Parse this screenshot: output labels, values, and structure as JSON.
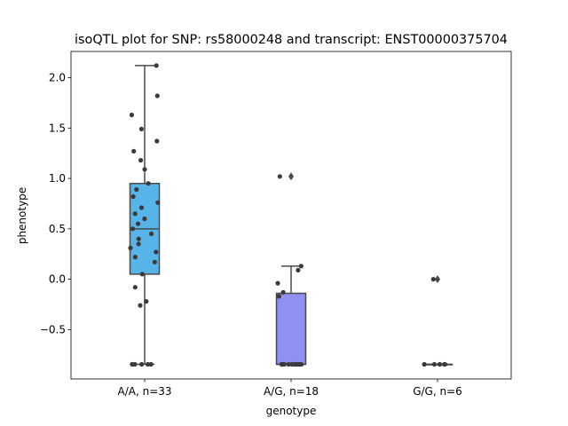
{
  "chart_data": {
    "type": "box",
    "title": "isoQTL plot for SNP: rs58000248 and transcript: ENST00000375704",
    "xlabel": "genotype",
    "ylabel": "phenotype",
    "categories": [
      "A/A, n=33",
      "A/G, n=18",
      "G/G, n=6"
    ],
    "ylim": [
      -0.99,
      2.26
    ],
    "yticks": [
      -0.5,
      0.0,
      0.5,
      1.0,
      1.5,
      2.0
    ],
    "ytick_labels": [
      "−0.5",
      "0.0",
      "0.5",
      "1.0",
      "1.5",
      "2.0"
    ],
    "grid": false,
    "colors": [
      "#56b4e9",
      "#9090f2",
      "#c8a8f0"
    ],
    "boxes": [
      {
        "category": "A/A, n=33",
        "whislo": -0.845,
        "q1": 0.05,
        "med": 0.5,
        "q3": 0.95,
        "whishi": 2.12,
        "fliers": []
      },
      {
        "category": "A/G, n=18",
        "whislo": -0.845,
        "q1": -0.845,
        "med": -0.845,
        "q3": -0.14,
        "whishi": 0.13,
        "fliers": [
          1.02
        ]
      },
      {
        "category": "G/G, n=6",
        "whislo": -0.845,
        "q1": -0.845,
        "med": -0.845,
        "q3": -0.845,
        "whishi": -0.845,
        "fliers": [
          0.0
        ]
      }
    ],
    "points": [
      {
        "category": "A/A, n=33",
        "values": [
          2.12,
          1.82,
          1.63,
          1.49,
          1.37,
          1.27,
          1.18,
          1.09,
          0.95,
          0.89,
          0.82,
          0.76,
          0.71,
          0.65,
          0.6,
          0.55,
          0.5,
          0.45,
          0.4,
          0.35,
          0.31,
          0.27,
          0.22,
          0.17,
          0.05,
          -0.08,
          -0.22,
          -0.26,
          -0.845,
          -0.845,
          -0.845,
          -0.845,
          -0.845
        ]
      },
      {
        "category": "A/G, n=18",
        "values": [
          1.02,
          0.13,
          0.09,
          -0.04,
          -0.13,
          -0.17,
          -0.845,
          -0.845,
          -0.845,
          -0.845,
          -0.845,
          -0.845,
          -0.845,
          -0.845,
          -0.845,
          -0.845,
          -0.845,
          -0.845
        ]
      },
      {
        "category": "G/G, n=6",
        "values": [
          0.0,
          -0.845,
          -0.845,
          -0.845,
          -0.845,
          -0.845
        ]
      }
    ]
  }
}
